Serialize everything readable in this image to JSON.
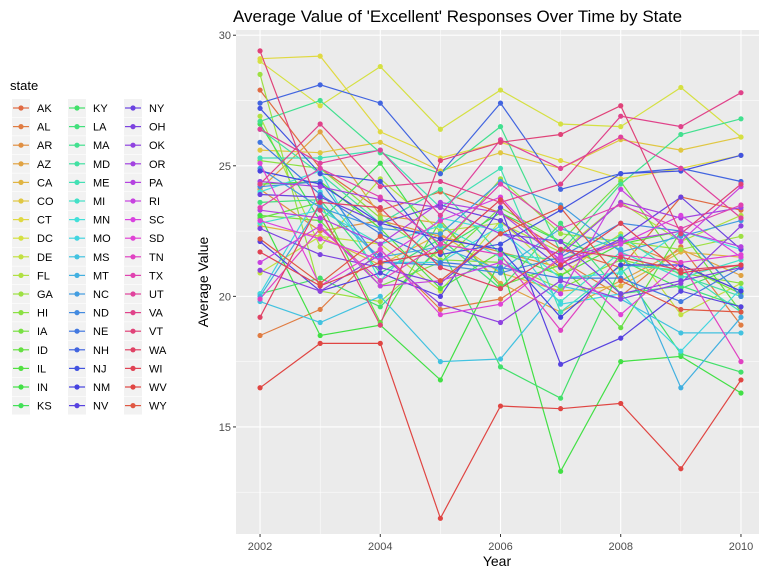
{
  "chart_data": {
    "type": "line",
    "title": "Average Value of 'Excellent' Responses Over Time by State",
    "xlabel": "Year",
    "ylabel": "Average Value",
    "xlim": [
      2001.6,
      2010.3
    ],
    "ylim": [
      10.9,
      30.2
    ],
    "x_ticks": [
      2002,
      2004,
      2006,
      2008,
      2010
    ],
    "y_ticks": [
      15,
      20,
      25,
      30
    ],
    "grid": true,
    "legend": {
      "title": "state",
      "placement": "left",
      "columns": 3,
      "entries": [
        "AK",
        "AL",
        "AR",
        "AZ",
        "CA",
        "CO",
        "CT",
        "DC",
        "DE",
        "FL",
        "GA",
        "HI",
        "IA",
        "ID",
        "IL",
        "IN",
        "KS",
        "KY",
        "LA",
        "MA",
        "MD",
        "ME",
        "MI",
        "MN",
        "MO",
        "MS",
        "MT",
        "NC",
        "ND",
        "NE",
        "NH",
        "NJ",
        "NM",
        "NV",
        "NY",
        "OH",
        "OK",
        "OR",
        "PA",
        "RI",
        "SC",
        "SD",
        "TN",
        "TX",
        "UT",
        "VA",
        "VT",
        "WA",
        "WI",
        "WV",
        "WY"
      ]
    },
    "x": [
      2002,
      2003,
      2004,
      2005,
      2006,
      2007,
      2008,
      2009,
      2010
    ],
    "series": [
      {
        "name": "AK",
        "values": [
          27.9,
          24.9,
          23.3,
          24.0,
          23.2,
          21.8,
          21.1,
          23.8,
          23.3
        ]
      },
      {
        "name": "AL",
        "values": [
          18.5,
          19.5,
          21.8,
          19.5,
          19.9,
          21.4,
          20.0,
          21.9,
          18.9
        ]
      },
      {
        "name": "AR",
        "values": [
          24.1,
          22.5,
          22.9,
          22.3,
          21.7,
          21.1,
          22.1,
          21.2,
          20.2
        ]
      },
      {
        "name": "AZ",
        "values": [
          24.1,
          26.3,
          23.1,
          22.8,
          20.5,
          19.4,
          20.6,
          21.8,
          20.8
        ]
      },
      {
        "name": "CA",
        "values": [
          22.7,
          22.3,
          21.2,
          22.4,
          20.9,
          20.2,
          20.4,
          21.7,
          21.5
        ]
      },
      {
        "name": "CO",
        "values": [
          25.6,
          25.5,
          25.9,
          24.8,
          25.5,
          24.9,
          26.0,
          25.6,
          26.1
        ]
      },
      {
        "name": "CT",
        "values": [
          29.1,
          29.2,
          26.3,
          25.3,
          25.9,
          25.2,
          24.5,
          24.9,
          25.4
        ]
      },
      {
        "name": "DC",
        "values": [
          29.0,
          27.3,
          28.8,
          26.4,
          27.9,
          26.6,
          26.5,
          28.0,
          26.1
        ]
      },
      {
        "name": "DE",
        "values": [
          20.9,
          22.3,
          22.0,
          20.2,
          22.9,
          20.8,
          22.4,
          19.3,
          20.5
        ]
      },
      {
        "name": "FL",
        "values": [
          26.9,
          21.9,
          24.5,
          22.5,
          22.8,
          21.7,
          23.6,
          22.1,
          23.1
        ]
      },
      {
        "name": "GA",
        "values": [
          28.5,
          20.2,
          19.8,
          21.8,
          24.5,
          22.4,
          22.1,
          21.8,
          22.3
        ]
      },
      {
        "name": "HI",
        "values": [
          25.2,
          24.9,
          23.0,
          21.4,
          21.3,
          20.3,
          21.4,
          20.9,
          20.5
        ]
      },
      {
        "name": "IA",
        "values": [
          23.1,
          22.9,
          20.4,
          21.3,
          23.4,
          22.1,
          24.4,
          21.2,
          20.1
        ]
      },
      {
        "name": "ID",
        "values": [
          23.0,
          23.6,
          19.0,
          22.9,
          20.4,
          21.2,
          18.8,
          22.5,
          19.4
        ]
      },
      {
        "name": "IL",
        "values": [
          24.3,
          24.4,
          22.6,
          20.3,
          21.7,
          20.8,
          22.0,
          22.5,
          20.0
        ]
      },
      {
        "name": "IN",
        "values": [
          23.1,
          18.5,
          18.9,
          16.8,
          21.4,
          13.3,
          17.5,
          17.7,
          16.3
        ]
      },
      {
        "name": "KS",
        "values": [
          26.6,
          22.9,
          25.1,
          21.8,
          23.2,
          22.1,
          21.4,
          20.3,
          21.2
        ]
      },
      {
        "name": "KY",
        "values": [
          20.1,
          20.7,
          19.6,
          21.9,
          17.3,
          16.1,
          21.1,
          17.8,
          17.1
        ]
      },
      {
        "name": "LA",
        "values": [
          23.6,
          23.7,
          20.9,
          22.2,
          20.3,
          22.8,
          20.1,
          20.4,
          19.6
        ]
      },
      {
        "name": "MA",
        "values": [
          26.7,
          27.5,
          25.5,
          24.7,
          26.5,
          21.7,
          24.3,
          26.2,
          26.8
        ]
      },
      {
        "name": "MD",
        "values": [
          26.4,
          24.7,
          22.8,
          24.1,
          21.6,
          21.4,
          22.3,
          20.8,
          20.0
        ]
      },
      {
        "name": "ME",
        "values": [
          25.3,
          25.3,
          25.6,
          23.4,
          24.9,
          19.4,
          21.2,
          21.0,
          19.4
        ]
      },
      {
        "name": "MI",
        "values": [
          22.8,
          23.3,
          22.0,
          22.7,
          21.5,
          19.8,
          21.7,
          20.7,
          21.4
        ]
      },
      {
        "name": "MN",
        "values": [
          24.0,
          24.8,
          20.6,
          23.0,
          22.5,
          20.7,
          20.9,
          22.5,
          21.8
        ]
      },
      {
        "name": "MO",
        "values": [
          20.1,
          24.0,
          21.3,
          21.3,
          22.7,
          19.7,
          20.1,
          17.9,
          20.3
        ]
      },
      {
        "name": "MS",
        "values": [
          19.8,
          19.0,
          20.0,
          17.5,
          17.6,
          20.4,
          19.9,
          18.6,
          18.6
        ]
      },
      {
        "name": "MT",
        "values": [
          20.0,
          23.5,
          21.5,
          21.9,
          21.0,
          22.6,
          21.8,
          16.5,
          19.2
        ]
      },
      {
        "name": "NC",
        "values": [
          24.9,
          23.4,
          22.6,
          22.4,
          24.4,
          23.5,
          21.7,
          22.3,
          22.9
        ]
      },
      {
        "name": "ND",
        "values": [
          24.2,
          24.4,
          21.3,
          21.2,
          20.9,
          21.5,
          22.8,
          22.5,
          20.0
        ]
      },
      {
        "name": "NE",
        "values": [
          25.9,
          23.9,
          22.4,
          21.3,
          21.1,
          20.7,
          20.7,
          19.8,
          21.1
        ]
      },
      {
        "name": "NH",
        "values": [
          27.4,
          28.1,
          27.4,
          24.7,
          27.4,
          24.1,
          24.7,
          24.9,
          24.4
        ]
      },
      {
        "name": "NJ",
        "values": [
          27.2,
          24.7,
          24.4,
          21.6,
          22.0,
          23.3,
          24.7,
          24.8,
          25.4
        ]
      },
      {
        "name": "NM",
        "values": [
          24.8,
          24.3,
          22.8,
          22.2,
          21.8,
          19.2,
          21.2,
          21.2,
          20.2
        ]
      },
      {
        "name": "NV",
        "values": [
          22.1,
          20.2,
          20.9,
          20.0,
          23.4,
          17.4,
          18.4,
          20.2,
          19.6
        ]
      },
      {
        "name": "NY",
        "values": [
          23.9,
          23.8,
          22.8,
          23.5,
          22.9,
          21.1,
          22.2,
          23.8,
          21.8
        ]
      },
      {
        "name": "OH",
        "values": [
          22.6,
          21.6,
          21.1,
          20.5,
          22.4,
          22.1,
          20.1,
          20.6,
          21.1
        ]
      },
      {
        "name": "OK",
        "values": [
          21.0,
          20.2,
          21.6,
          19.7,
          19.0,
          20.6,
          19.9,
          20.5,
          22.7
        ]
      },
      {
        "name": "OR",
        "values": [
          24.4,
          24.2,
          23.7,
          23.4,
          22.4,
          21.6,
          23.6,
          23.0,
          23.4
        ]
      },
      {
        "name": "PA",
        "values": [
          23.3,
          23.0,
          22.0,
          23.6,
          23.2,
          21.4,
          22.1,
          22.5,
          21.9
        ]
      },
      {
        "name": "RI",
        "values": [
          21.3,
          22.7,
          20.4,
          20.6,
          21.3,
          20.1,
          24.1,
          22.1,
          24.2
        ]
      },
      {
        "name": "SC",
        "values": [
          22.9,
          22.2,
          21.4,
          22.9,
          23.8,
          21.3,
          22.0,
          23.1,
          21.5
        ]
      },
      {
        "name": "SD",
        "values": [
          25.1,
          20.4,
          21.8,
          19.3,
          19.7,
          21.5,
          19.3,
          21.3,
          21.6
        ]
      },
      {
        "name": "TN",
        "values": [
          19.9,
          22.6,
          20.6,
          22.0,
          21.6,
          18.7,
          21.6,
          21.3,
          17.5
        ]
      },
      {
        "name": "TX",
        "values": [
          23.4,
          24.9,
          23.8,
          22.0,
          24.3,
          22.6,
          23.5,
          22.6,
          23.5
        ]
      },
      {
        "name": "UT",
        "values": [
          26.4,
          25.1,
          25.6,
          23.1,
          26.0,
          24.9,
          26.1,
          24.9,
          23.0
        ]
      },
      {
        "name": "VA",
        "values": [
          24.3,
          26.6,
          24.2,
          24.4,
          23.6,
          24.3,
          26.9,
          26.5,
          27.8
        ]
      },
      {
        "name": "VT",
        "values": [
          29.4,
          23.3,
          18.9,
          25.2,
          25.9,
          26.2,
          27.3,
          22.4,
          24.3
        ]
      },
      {
        "name": "WA",
        "values": [
          19.2,
          23.6,
          23.4,
          21.1,
          20.3,
          21.8,
          21.5,
          21.0,
          21.2
        ]
      },
      {
        "name": "WI",
        "values": [
          21.7,
          20.4,
          21.3,
          21.7,
          23.7,
          21.2,
          22.8,
          20.9,
          21.2
        ]
      },
      {
        "name": "WV",
        "values": [
          16.5,
          18.2,
          18.2,
          11.5,
          15.8,
          15.7,
          15.9,
          13.4,
          16.8
        ]
      },
      {
        "name": "WY",
        "values": [
          22.2,
          20.5,
          22.3,
          20.6,
          22.4,
          23.4,
          20.6,
          19.5,
          19.4
        ]
      }
    ]
  }
}
